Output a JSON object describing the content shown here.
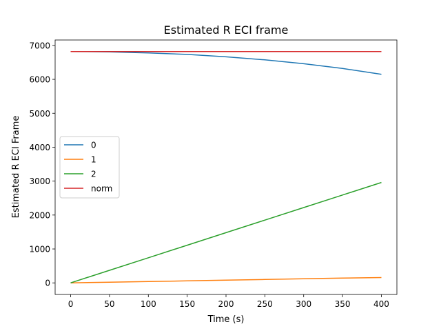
{
  "chart_data": {
    "type": "line",
    "title": "Estimated R ECI frame",
    "xlabel": "Time (s)",
    "ylabel": "Estimated R ECI Frame",
    "xlim": [
      -20,
      420
    ],
    "ylim": [
      -341,
      7160
    ],
    "xticks": [
      "0",
      "50",
      "100",
      "150",
      "200",
      "250",
      "300",
      "350",
      "400"
    ],
    "yticks": [
      "0",
      "1000",
      "2000",
      "3000",
      "4000",
      "5000",
      "6000",
      "7000"
    ],
    "grid": false,
    "legend_position": "center-left",
    "x": [
      0,
      50,
      100,
      150,
      200,
      250,
      300,
      350,
      400
    ],
    "series": [
      {
        "name": "0",
        "color": "#1f77b4",
        "values": [
          6820,
          6810,
          6780,
          6735,
          6665,
          6575,
          6460,
          6320,
          6150
        ]
      },
      {
        "name": "1",
        "color": "#ff7f0e",
        "values": [
          0,
          20,
          40,
          60,
          80,
          100,
          120,
          140,
          158
        ]
      },
      {
        "name": "2",
        "color": "#2ca02c",
        "values": [
          0,
          370,
          740,
          1110,
          1480,
          1850,
          2220,
          2590,
          2960
        ]
      },
      {
        "name": "norm",
        "color": "#d62728",
        "values": [
          6820,
          6820,
          6820,
          6820,
          6820,
          6820,
          6820,
          6820,
          6820
        ]
      }
    ]
  }
}
